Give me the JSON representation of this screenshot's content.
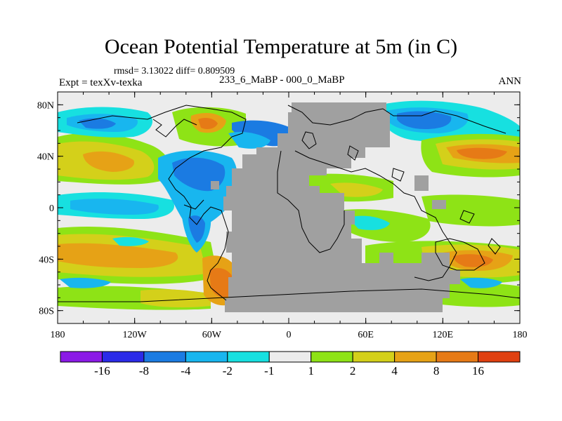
{
  "title": "Ocean Potential Temperature at 5m (in C)",
  "stats": "rmsd= 3.13022  diff= 0.809509",
  "experiment": "Expt = texXv-texka",
  "subtitle": "233_6_MaBP - 000_0_MaBP",
  "season": "ANN",
  "y_ticks": [
    {
      "lat": 80,
      "label": "80N"
    },
    {
      "lat": 40,
      "label": "40N"
    },
    {
      "lat": 0,
      "label": "0"
    },
    {
      "lat": -40,
      "label": "40S"
    },
    {
      "lat": -80,
      "label": "80S"
    }
  ],
  "x_ticks": [
    {
      "lon": -180,
      "label": "180"
    },
    {
      "lon": -120,
      "label": "120W"
    },
    {
      "lon": -60,
      "label": "60W"
    },
    {
      "lon": 0,
      "label": "0"
    },
    {
      "lon": 60,
      "label": "60E"
    },
    {
      "lon": 120,
      "label": "120E"
    },
    {
      "lon": 180,
      "label": "180"
    }
  ],
  "colorbar": {
    "colors": [
      "#8b1ae6",
      "#2b2be8",
      "#1b7be2",
      "#18b6ef",
      "#17e0e0",
      "#ececec",
      "#8ee316",
      "#d4d01a",
      "#e6a216",
      "#e67a16",
      "#e04010"
    ],
    "labels": [
      "-16",
      "-8",
      "-4",
      "-2",
      "-1",
      "1",
      "2",
      "4",
      "8",
      "16"
    ]
  },
  "colors": {
    "land": "#a0a0a0",
    "ocean_background": "#ececec"
  }
}
